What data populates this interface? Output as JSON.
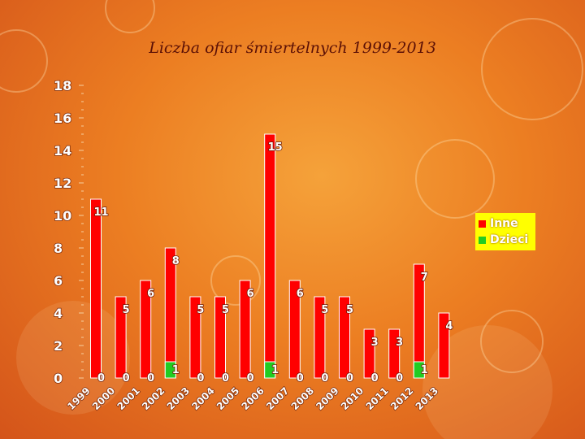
{
  "chart_data": {
    "type": "bar",
    "title": "Liczba ofiar śmiertelnych 1999-2013",
    "categories": [
      "1999",
      "2000",
      "2001",
      "2002",
      "2003",
      "2004",
      "2005",
      "2006",
      "2007",
      "2008",
      "2009",
      "2010",
      "2011",
      "2012",
      "2013"
    ],
    "series": [
      {
        "name": "Inne",
        "color": "#ff0000",
        "values": [
          11,
          5,
          6,
          8,
          5,
          5,
          6,
          15,
          6,
          5,
          5,
          3,
          3,
          7,
          4
        ]
      },
      {
        "name": "Dzieci",
        "color": "#22cc22",
        "values": [
          0,
          0,
          0,
          1,
          0,
          0,
          0,
          1,
          0,
          0,
          0,
          0,
          0,
          1,
          null
        ]
      }
    ],
    "ylim": [
      0,
      18
    ],
    "yticks": [
      0,
      2,
      4,
      6,
      8,
      10,
      12,
      14,
      16,
      18
    ],
    "legend_position": "right",
    "grid": false
  }
}
